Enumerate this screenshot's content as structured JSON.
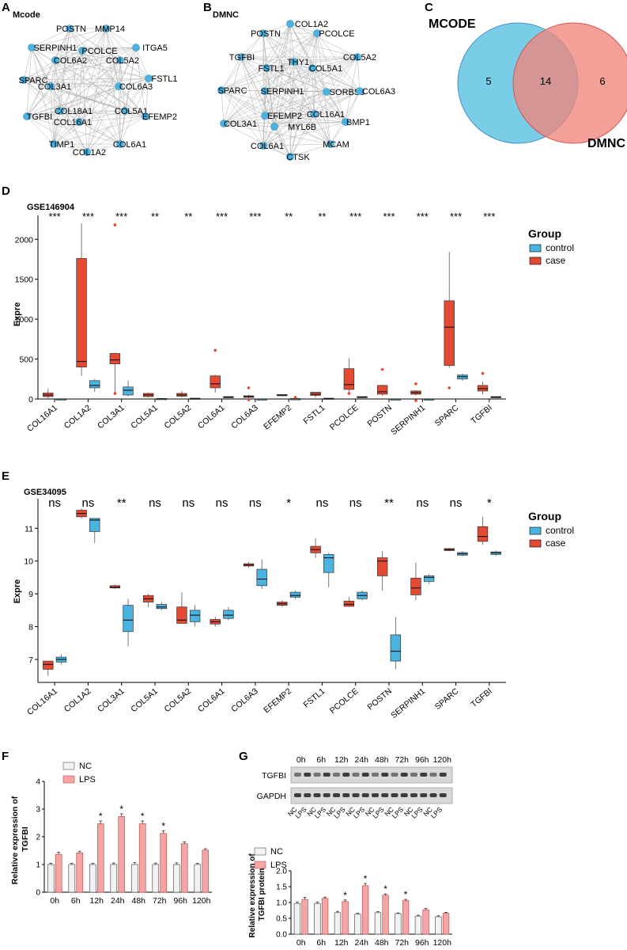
{
  "colors": {
    "case": "#e34a33",
    "control": "#4bb3df",
    "mcode_circle": "#79cde6",
    "dmnc_circle": "#ef857c",
    "lps_bar": "#f4a6a6",
    "nc_bar": "#f2f2f2"
  },
  "panelA": {
    "letter": "A",
    "title": "Mcode",
    "nodes": [
      "POSTN",
      "MMP14",
      "SERPINH1",
      "ITGA5",
      "PCOLCE",
      "COL6A2",
      "COL5A2",
      "FSTL1",
      "SPARC",
      "COL3A1",
      "COL6A3",
      "TGFBI",
      "COL18A1",
      "COL5A1",
      "EFEMP2",
      "COL16A1",
      "TIMP1",
      "COL6A1",
      "COL1A2"
    ]
  },
  "panelB": {
    "letter": "B",
    "title": "DMNC",
    "nodes": [
      "COL1A2",
      "POSTN",
      "PCOLCE",
      "TGFBI",
      "THY1",
      "COL5A2",
      "FSTL1",
      "COL5A1",
      "SPARC",
      "SERPINH1",
      "SORBS3",
      "COL6A3",
      "EFEMP2",
      "COL16A1",
      "COL3A1",
      "MYL6B",
      "BMP1",
      "COL6A1",
      "MCAM",
      "CTSK"
    ]
  },
  "panelC": {
    "letter": "C",
    "label_left": "MCODE",
    "label_right": "DMNC",
    "only_left": "5",
    "both": "14",
    "only_right": "6"
  },
  "panelD": {
    "letter": "D",
    "dataset": "GSE146904",
    "ylabel": "Expre",
    "legend": {
      "title": "Group",
      "control": "control",
      "case": "case"
    },
    "chart_data": {
      "type": "box",
      "title": "GSE146904",
      "ylabel": "Expre",
      "ylim": [
        0,
        2300
      ],
      "yticks": [
        "0",
        "500",
        "1000",
        "1500",
        "2000"
      ],
      "categories": [
        "COL16A1",
        "COL1A2",
        "COL3A1",
        "COL5A1",
        "COL5A2",
        "COL6A1",
        "COL6A3",
        "EFEMP2",
        "FSTL1",
        "PCOLCE",
        "POSTN",
        "SERPINH1",
        "SPARC",
        "TGFBI"
      ],
      "significance": [
        "***",
        "***",
        "***",
        "**",
        "**",
        "***",
        "***",
        "**",
        "**",
        "***",
        "***",
        "***",
        "***",
        "***"
      ],
      "series": [
        {
          "name": "case",
          "boxes": [
            [
              10,
              30,
              50,
              75,
              130
            ],
            [
              290,
              400,
              470,
              1760,
              2200
            ],
            [
              60,
              440,
              490,
              570,
              580
            ],
            [
              20,
              30,
              50,
              70,
              80
            ],
            [
              20,
              35,
              50,
              70,
              100
            ],
            [
              80,
              140,
              190,
              290,
              300
            ],
            [
              5,
              20,
              30,
              40,
              50
            ],
            [
              35,
              45,
              50,
              55,
              60
            ],
            [
              20,
              45,
              60,
              85,
              90
            ],
            [
              90,
              120,
              180,
              380,
              510
            ],
            [
              40,
              60,
              90,
              170,
              180
            ],
            [
              45,
              60,
              80,
              100,
              110
            ],
            [
              390,
              420,
              900,
              1230,
              1840
            ],
            [
              60,
              100,
              130,
              170,
              220
            ]
          ],
          "outliers": [
            [],
            [],
            [
              2180,
              70
            ],
            [],
            [],
            [
              610
            ],
            [
              140,
              -10
            ],
            [],
            [],
            [
              70
            ],
            [
              370
            ],
            [
              190,
              -20
            ],
            [
              540,
              140
            ],
            [
              320
            ]
          ]
        },
        {
          "name": "control",
          "boxes": [
            [
              -5,
              -2,
              0,
              2,
              5
            ],
            [
              90,
              140,
              170,
              230,
              250
            ],
            [
              30,
              50,
              110,
              150,
              230
            ],
            [
              -3,
              0,
              3,
              6,
              10
            ],
            [
              -3,
              2,
              5,
              10,
              15
            ],
            [
              15,
              20,
              25,
              30,
              35
            ],
            [
              -3,
              -1,
              0,
              1,
              3
            ],
            [
              -2,
              0,
              2,
              4,
              6
            ],
            [
              -5,
              -2,
              5,
              10,
              12
            ],
            [
              15,
              20,
              25,
              30,
              35
            ],
            [
              -3,
              -1,
              0,
              1,
              3
            ],
            [
              -3,
              -1,
              0,
              1,
              3
            ],
            [
              230,
              250,
              280,
              300,
              320
            ],
            [
              15,
              20,
              25,
              30,
              35
            ]
          ],
          "outliers": [
            [],
            [],
            [],
            [],
            [],
            [],
            [],
            [
              20
            ],
            [],
            [],
            [],
            [],
            [],
            []
          ]
        }
      ]
    }
  },
  "panelE": {
    "letter": "E",
    "dataset": "GSE34095",
    "ylabel": "Expre",
    "legend": {
      "title": "Group",
      "control": "control",
      "case": "case"
    },
    "chart_data": {
      "type": "box",
      "title": "GSE34095",
      "ylabel": "Expre",
      "ylim": [
        6.3,
        11.9
      ],
      "yticks": [
        "7",
        "8",
        "9",
        "10",
        "11"
      ],
      "categories": [
        "COL16A1",
        "COL1A2",
        "COL3A1",
        "COL5A1",
        "COL5A2",
        "COL6A1",
        "COL6A3",
        "EFEMP2",
        "FSTL1",
        "PCOLCE",
        "POSTN",
        "SERPINH1",
        "SPARC",
        "TGFBI"
      ],
      "significance": [
        "ns",
        "ns",
        "**",
        "ns",
        "ns",
        "ns",
        "ns",
        "*",
        "ns",
        "ns",
        "**",
        "ns",
        "ns",
        "*"
      ],
      "series": [
        {
          "name": "case",
          "boxes": [
            [
              6.5,
              6.7,
              6.85,
              6.95,
              6.95
            ],
            [
              11.3,
              11.35,
              11.45,
              11.55,
              11.6
            ],
            [
              9.15,
              9.18,
              9.2,
              9.25,
              9.28
            ],
            [
              8.6,
              8.75,
              8.85,
              8.95,
              9.0
            ],
            [
              8.1,
              8.1,
              8.2,
              8.6,
              9.05
            ],
            [
              8.0,
              8.08,
              8.15,
              8.22,
              8.3
            ],
            [
              9.8,
              9.85,
              9.88,
              9.92,
              9.97
            ],
            [
              8.6,
              8.65,
              8.7,
              8.75,
              8.8
            ],
            [
              10.1,
              10.25,
              10.35,
              10.45,
              10.7
            ],
            [
              8.6,
              8.62,
              8.68,
              8.78,
              8.9
            ],
            [
              9.1,
              9.55,
              10.0,
              10.1,
              10.3
            ],
            [
              8.8,
              8.97,
              9.18,
              9.48,
              9.95
            ],
            [
              10.3,
              10.32,
              10.35,
              10.38,
              10.4
            ],
            [
              10.5,
              10.6,
              10.75,
              11.05,
              11.35
            ]
          ],
          "outliers": [
            [],
            [],
            [],
            [],
            [],
            [],
            [],
            [],
            [],
            [],
            [],
            [],
            [],
            []
          ]
        },
        {
          "name": "control",
          "boxes": [
            [
              6.85,
              6.92,
              7.0,
              7.07,
              7.15
            ],
            [
              10.55,
              10.9,
              11.25,
              11.3,
              11.3
            ],
            [
              7.4,
              7.85,
              8.2,
              8.65,
              8.85
            ],
            [
              8.5,
              8.55,
              8.6,
              8.68,
              8.75
            ],
            [
              8.0,
              8.15,
              8.35,
              8.5,
              8.65
            ],
            [
              8.2,
              8.25,
              8.35,
              8.5,
              8.6
            ],
            [
              9.15,
              9.25,
              9.45,
              9.75,
              10.05
            ],
            [
              8.85,
              8.9,
              8.95,
              9.05,
              9.1
            ],
            [
              9.2,
              9.65,
              10.1,
              10.2,
              10.25
            ],
            [
              8.8,
              8.85,
              8.95,
              9.05,
              9.1
            ],
            [
              6.7,
              6.95,
              7.25,
              7.75,
              8.3
            ],
            [
              9.3,
              9.38,
              9.5,
              9.55,
              9.6
            ],
            [
              10.15,
              10.18,
              10.22,
              10.26,
              10.3
            ],
            [
              10.15,
              10.2,
              10.25,
              10.28,
              10.32
            ]
          ],
          "outliers": [
            [],
            [],
            [],
            [],
            [],
            [],
            [],
            [],
            [],
            [],
            [],
            [],
            [],
            []
          ]
        }
      ]
    }
  },
  "panelF": {
    "letter": "F",
    "ylabel": "Relative expression of TGFBI",
    "legend": {
      "nc": "NC",
      "lps": "LPS"
    },
    "chart_data": {
      "type": "bar",
      "ylabel": "Relative expression of TGFBI",
      "ylim": [
        0,
        4
      ],
      "yticks": [
        "0",
        "1",
        "2",
        "3",
        "4"
      ],
      "categories": [
        "0h",
        "6h",
        "12h",
        "24h",
        "48h",
        "72h",
        "96h",
        "120h"
      ],
      "series": [
        {
          "name": "NC",
          "values": [
            1.0,
            1.0,
            1.0,
            1.0,
            1.0,
            1.0,
            1.0,
            1.0
          ]
        },
        {
          "name": "LPS",
          "values": [
            1.37,
            1.42,
            2.47,
            2.73,
            2.47,
            2.12,
            1.75,
            1.52
          ]
        }
      ],
      "errors": [
        [
          0.04,
          0.04,
          0.04,
          0.05,
          0.07,
          0.05,
          0.06,
          0.04
        ],
        [
          0.07,
          0.06,
          0.1,
          0.1,
          0.1,
          0.1,
          0.07,
          0.05
        ]
      ],
      "significance": [
        "",
        "",
        "*",
        "*",
        "*",
        "*",
        "",
        ""
      ]
    }
  },
  "panelG": {
    "letter": "G",
    "timepoints": [
      "0h",
      "6h",
      "12h",
      "24h",
      "48h",
      "72h",
      "96h",
      "120h"
    ],
    "blot_labels": [
      "TGFBI",
      "GAPDH"
    ],
    "lane_labels": [
      "NC",
      "LPS",
      "NC",
      "LPS",
      "NC",
      "LPS",
      "NC",
      "LPS",
      "NC",
      "LPS",
      "NC",
      "LPS",
      "NC",
      "LPS",
      "NC",
      "LPS"
    ],
    "ylabel": "Relative expression of TGFBI protein",
    "legend": {
      "nc": "NC",
      "lps": "LPS"
    },
    "chart_data": {
      "type": "bar",
      "ylabel": "Relative expression of TGFBI protein",
      "ylim": [
        0,
        2.0
      ],
      "yticks": [
        "0.0",
        "0.5",
        "1.0",
        "1.5",
        "2.0"
      ],
      "categories": [
        "0h",
        "6h",
        "12h",
        "24h",
        "48h",
        "72h",
        "96h",
        "120h"
      ],
      "series": [
        {
          "name": "NC",
          "values": [
            0.97,
            0.97,
            0.68,
            0.63,
            0.68,
            0.65,
            0.57,
            0.55
          ]
        },
        {
          "name": "LPS",
          "values": [
            1.1,
            1.13,
            1.03,
            1.53,
            1.23,
            1.06,
            0.77,
            0.66
          ]
        }
      ],
      "errors": [
        [
          0.05,
          0.04,
          0.04,
          0.03,
          0.03,
          0.02,
          0.03,
          0.03
        ],
        [
          0.06,
          0.04,
          0.05,
          0.07,
          0.04,
          0.04,
          0.04,
          0.03
        ]
      ],
      "significance": [
        "",
        "",
        "*",
        "*",
        "*",
        "*",
        "",
        ""
      ]
    }
  }
}
